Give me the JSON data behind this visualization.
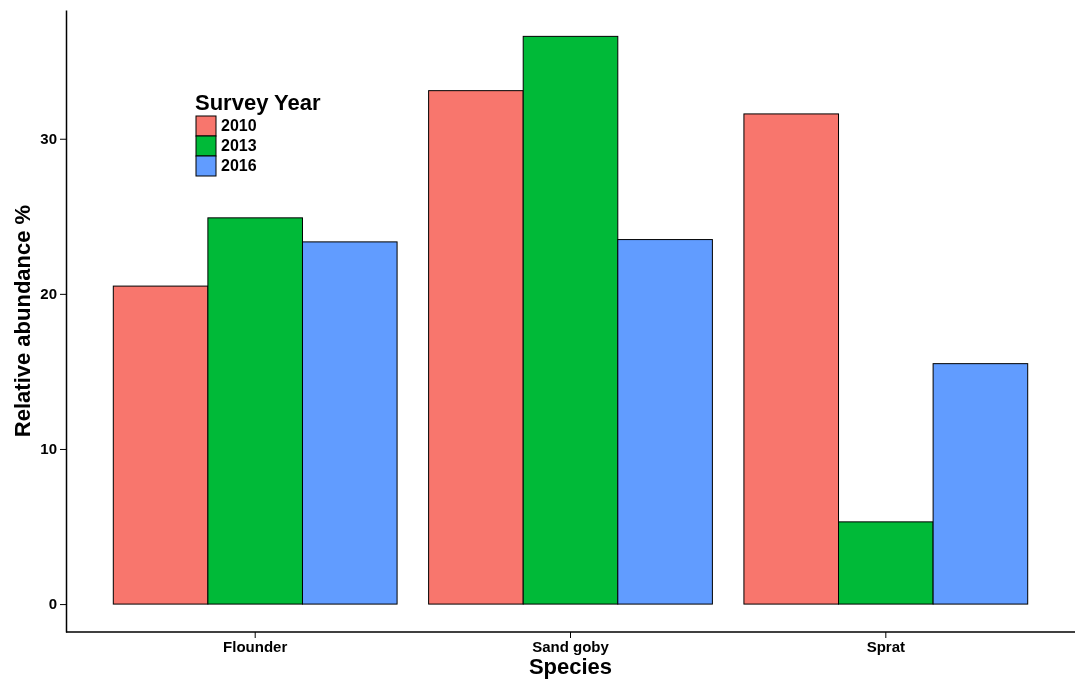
{
  "chart_data": {
    "type": "bar",
    "xlabel": "Species",
    "ylabel": "Relative abundance %",
    "legend_title": "Survey Year",
    "categories": [
      "Flounder",
      "Sand goby",
      "Sprat"
    ],
    "series": [
      {
        "name": "2010",
        "color": "#f8766d",
        "values": [
          20.5,
          33.1,
          31.6
        ]
      },
      {
        "name": "2013",
        "color": "#00ba38",
        "values": [
          24.9,
          36.6,
          5.3
        ]
      },
      {
        "name": "2016",
        "color": "#619cff",
        "values": [
          23.35,
          23.5,
          15.5
        ]
      }
    ],
    "ylim": [
      -1.8,
      38.3
    ],
    "yticks": [
      0,
      10,
      20,
      30
    ],
    "grid": false,
    "legend": "top left"
  }
}
